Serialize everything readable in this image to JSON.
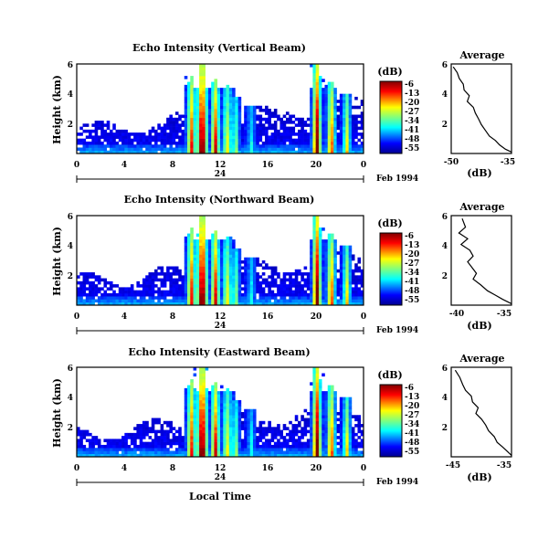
{
  "chart_data": [
    {
      "type": "heatmap",
      "title": "Echo Intensity (Vertical Beam)",
      "ylabel": "Height (km)",
      "xlabel": "",
      "y_ticks": [
        "6",
        "4",
        "2"
      ],
      "x_ticks": [
        "0",
        "4",
        "8",
        "12",
        "16",
        "20",
        "0"
      ],
      "date_day": "24",
      "date_label": "Feb 1994",
      "colorbar_unit": "(dB)",
      "colorbar_ticks": [
        "-6",
        "-13",
        "-20",
        "-27",
        "-34",
        "-41",
        "-48",
        "-55"
      ],
      "average": {
        "title": "Average",
        "xlabel": "(dB)",
        "x_ticks": [
          "-50",
          "-35"
        ],
        "y_ticks": [
          "6",
          "4",
          "2"
        ],
        "points": [
          [
            -49.5,
            6.0
          ],
          [
            -48.5,
            5.6
          ],
          [
            -48.0,
            5.2
          ],
          [
            -47.0,
            4.8
          ],
          [
            -46.8,
            4.4
          ],
          [
            -45.5,
            4.0
          ],
          [
            -46.0,
            3.6
          ],
          [
            -44.5,
            3.2
          ],
          [
            -44.0,
            2.8
          ],
          [
            -43.2,
            2.4
          ],
          [
            -42.5,
            2.0
          ],
          [
            -41.5,
            1.6
          ],
          [
            -40.5,
            1.2
          ],
          [
            -39.0,
            0.9
          ],
          [
            -38.0,
            0.6
          ],
          [
            -36.5,
            0.3
          ],
          [
            -35.0,
            0.1
          ]
        ]
      }
    },
    {
      "type": "heatmap",
      "title": "Echo Intensity (Northward Beam)",
      "ylabel": "Height (km)",
      "xlabel": "",
      "y_ticks": [
        "6",
        "4",
        "2"
      ],
      "x_ticks": [
        "0",
        "4",
        "8",
        "12",
        "16",
        "20",
        "0"
      ],
      "date_day": "24",
      "date_label": "Feb 1994",
      "colorbar_unit": "(dB)",
      "colorbar_ticks": [
        "-6",
        "-13",
        "-20",
        "-27",
        "-34",
        "-41",
        "-48",
        "-55"
      ],
      "average": {
        "title": "Average",
        "xlabel": "(dB)",
        "x_ticks": [
          "-40",
          "-35"
        ],
        "y_ticks": [
          "6",
          "4",
          "2"
        ],
        "points": [
          [
            -39.5,
            6.0
          ],
          [
            -39.2,
            5.4
          ],
          [
            -39.8,
            5.0
          ],
          [
            -39.0,
            4.6
          ],
          [
            -39.6,
            4.2
          ],
          [
            -38.8,
            3.8
          ],
          [
            -38.5,
            3.4
          ],
          [
            -39.0,
            3.0
          ],
          [
            -38.6,
            2.6
          ],
          [
            -38.2,
            2.2
          ],
          [
            -38.5,
            1.8
          ],
          [
            -37.8,
            1.4
          ],
          [
            -37.2,
            1.0
          ],
          [
            -36.5,
            0.7
          ],
          [
            -35.8,
            0.4
          ],
          [
            -35.0,
            0.1
          ]
        ]
      }
    },
    {
      "type": "heatmap",
      "title": "Echo Intensity (Eastward Beam)",
      "ylabel": "Height (km)",
      "xlabel": "Local Time",
      "y_ticks": [
        "6",
        "4",
        "2"
      ],
      "x_ticks": [
        "0",
        "4",
        "8",
        "12",
        "16",
        "20",
        "0"
      ],
      "date_day": "24",
      "date_label": "Feb 1994",
      "colorbar_unit": "(dB)",
      "colorbar_ticks": [
        "-6",
        "-13",
        "-20",
        "-27",
        "-34",
        "-41",
        "-48",
        "-55"
      ],
      "average": {
        "title": "Average",
        "xlabel": "(dB)",
        "x_ticks": [
          "-45",
          "-35"
        ],
        "y_ticks": [
          "6",
          "4",
          "2"
        ],
        "points": [
          [
            -44.8,
            6.0
          ],
          [
            -44.0,
            5.5
          ],
          [
            -43.5,
            5.0
          ],
          [
            -43.0,
            4.6
          ],
          [
            -42.0,
            4.2
          ],
          [
            -41.8,
            3.8
          ],
          [
            -40.8,
            3.4
          ],
          [
            -41.2,
            3.0
          ],
          [
            -40.2,
            2.6
          ],
          [
            -39.5,
            2.2
          ],
          [
            -39.0,
            1.8
          ],
          [
            -38.0,
            1.4
          ],
          [
            -37.5,
            1.0
          ],
          [
            -36.6,
            0.7
          ],
          [
            -35.8,
            0.4
          ],
          [
            -35.0,
            0.1
          ]
        ]
      }
    }
  ]
}
